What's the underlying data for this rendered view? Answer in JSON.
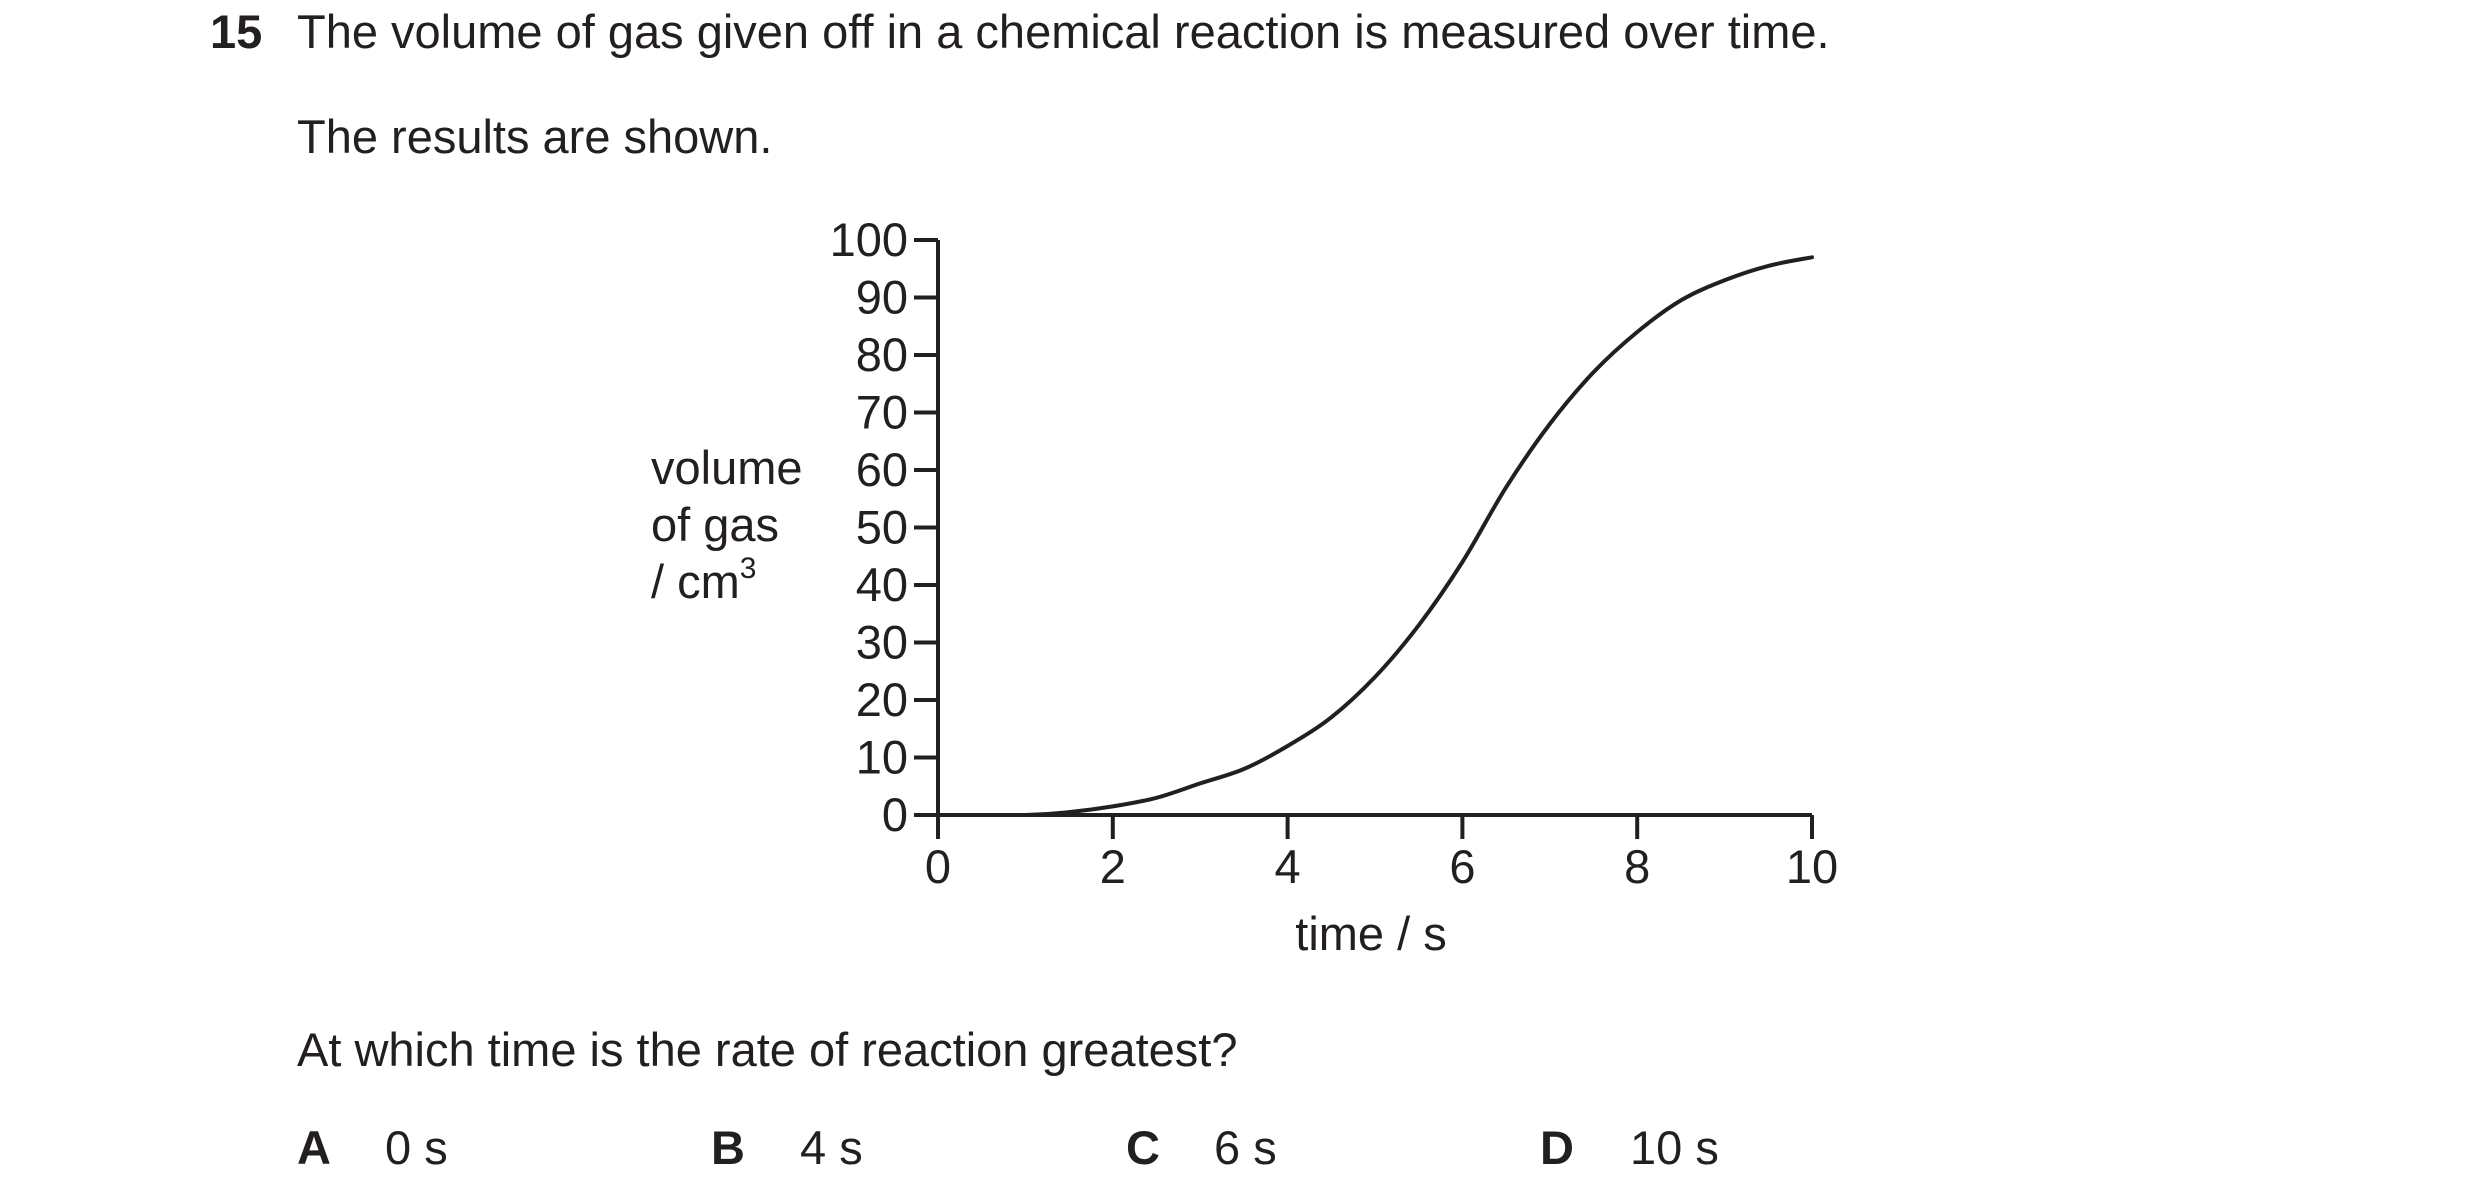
{
  "question": {
    "number": "15",
    "stem": "The volume of gas given off in a chemical reaction is measured over time.",
    "intro": "The results are shown.",
    "prompt": "At which time is the rate of reaction greatest?",
    "options": [
      {
        "letter": "A",
        "value": "0 s"
      },
      {
        "letter": "B",
        "value": "4 s"
      },
      {
        "letter": "C",
        "value": "6 s"
      },
      {
        "letter": "D",
        "value": "10 s"
      }
    ]
  },
  "chart_data": {
    "type": "line",
    "title": "",
    "ylabel_lines": [
      "volume",
      "of gas",
      "/ cm"
    ],
    "ylabel_superscript": "3",
    "xlabel": "time / s",
    "xlim": [
      0,
      10
    ],
    "ylim": [
      0,
      100
    ],
    "xticks": [
      0,
      2,
      4,
      6,
      8,
      10
    ],
    "yticks": [
      0,
      10,
      20,
      30,
      40,
      50,
      60,
      70,
      80,
      90,
      100
    ],
    "grid": false,
    "legend": "none",
    "line_color": "#231f20",
    "series": [
      {
        "x": [
          0,
          1,
          1.5,
          2,
          2.5,
          3,
          3.5,
          4,
          4.5,
          5,
          5.5,
          6,
          6.5,
          7,
          7.5,
          8,
          8.5,
          9,
          9.5,
          10
        ],
        "y": [
          0,
          0,
          0.5,
          1.5,
          3,
          5.5,
          8,
          12,
          17,
          24,
          33,
          44,
          57,
          68,
          77,
          84,
          89.5,
          93,
          95.5,
          97
        ]
      }
    ]
  }
}
